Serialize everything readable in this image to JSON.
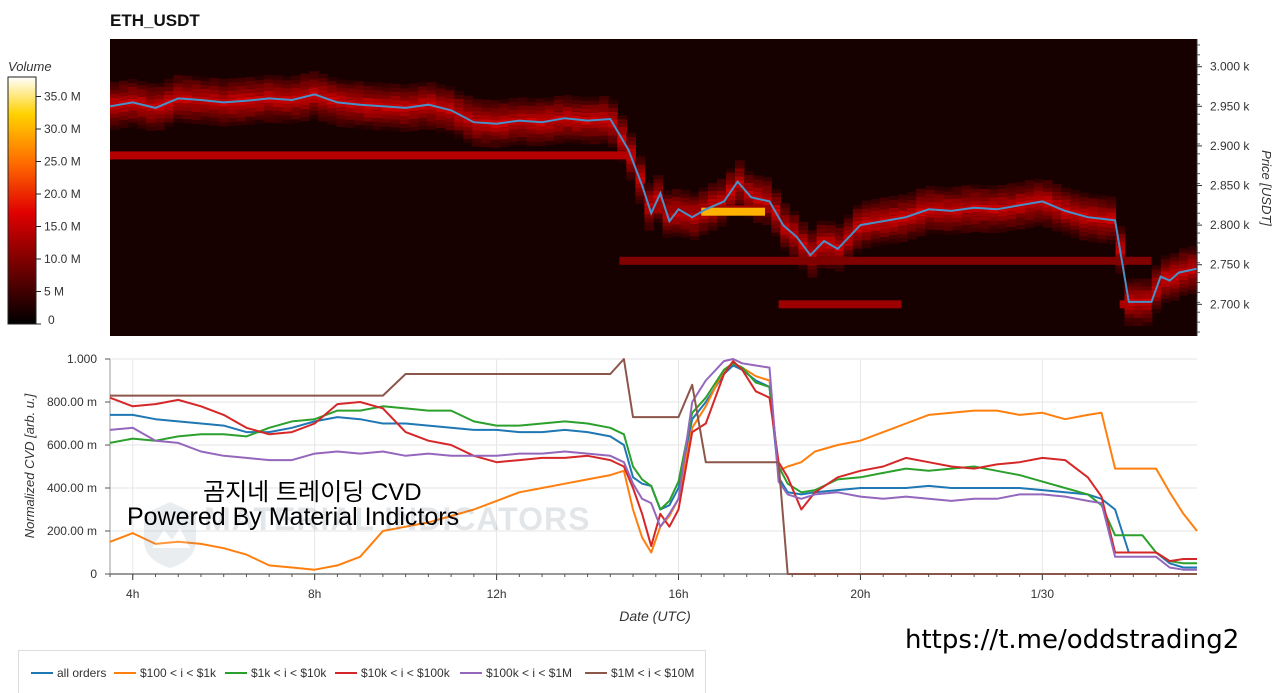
{
  "title": "ETH_USDT",
  "colorbar": {
    "label": "Volume",
    "ticks": [
      "35.0 M",
      "30.0 M",
      "25.0 M",
      "20.0 M",
      "15.0 M",
      "10.0 M",
      "5 M",
      "0"
    ]
  },
  "overlay": {
    "line1": "곰지네 트레이딩 CVD",
    "line2": "Powered By Material Indictors",
    "url": "https://t.me/oddstrading2",
    "watermark": "MATERIAL INDICATORS"
  },
  "chart_data": [
    {
      "type": "heatmap",
      "title": "ETH_USDT",
      "ylabel": "Price [USDT]",
      "yticks": [
        "3.000 k",
        "2.950 k",
        "2.900 k",
        "2.850 k",
        "2.800 k",
        "2.750 k",
        "2.700 k"
      ],
      "ylim": [
        2660,
        3035
      ],
      "xlim_hours": [
        3.5,
        27.4
      ],
      "colorbar_range_millions": [
        0,
        38
      ],
      "heat_bands": [
        {
          "price": 2888,
          "from": 3.5,
          "to": 14.9,
          "volume_m": 14
        },
        {
          "price": 2820,
          "from": 15.4,
          "to": 18.0,
          "volume_m": 12
        },
        {
          "price": 2817,
          "from": 16.5,
          "to": 17.9,
          "volume_m": 30
        },
        {
          "price": 2755,
          "from": 14.7,
          "to": 26.4,
          "volume_m": 10
        },
        {
          "price": 2700,
          "from": 18.2,
          "to": 20.9,
          "volume_m": 12
        },
        {
          "price": 2700,
          "from": 25.7,
          "to": 25.9,
          "volume_m": 13
        }
      ],
      "price_series": {
        "name": "",
        "x": [
          3.5,
          4.0,
          4.5,
          5.0,
          5.5,
          6.0,
          6.5,
          7.0,
          7.5,
          8.0,
          8.5,
          9.0,
          9.5,
          10.0,
          10.5,
          11.0,
          11.5,
          12.0,
          12.5,
          13.0,
          13.5,
          14.0,
          14.5,
          14.9,
          15.2,
          15.4,
          15.6,
          15.8,
          16.0,
          16.3,
          16.6,
          17.0,
          17.3,
          17.6,
          18.0,
          18.3,
          18.6,
          18.9,
          19.2,
          19.5,
          20.0,
          20.5,
          21.0,
          21.5,
          22.0,
          22.5,
          23.0,
          23.5,
          24.0,
          24.5,
          25.0,
          25.3,
          25.6,
          25.9,
          26.2,
          26.4,
          26.6,
          26.8,
          27.0,
          27.4
        ],
        "y": [
          2950,
          2955,
          2948,
          2960,
          2958,
          2955,
          2957,
          2960,
          2958,
          2965,
          2955,
          2952,
          2950,
          2948,
          2952,
          2945,
          2930,
          2928,
          2932,
          2930,
          2935,
          2932,
          2934,
          2895,
          2850,
          2815,
          2840,
          2805,
          2820,
          2810,
          2820,
          2830,
          2855,
          2835,
          2830,
          2800,
          2785,
          2762,
          2780,
          2770,
          2800,
          2805,
          2810,
          2820,
          2818,
          2822,
          2820,
          2825,
          2830,
          2818,
          2810,
          2808,
          2806,
          2703,
          2703,
          2703,
          2735,
          2730,
          2740,
          2745
        ]
      }
    },
    {
      "type": "line",
      "xlabel": "Date (UTC)",
      "ylabel": "Normalized CVD [arb. u.]",
      "x_ticks": [
        "4h",
        "8h",
        "12h",
        "16h",
        "20h",
        "1/30"
      ],
      "x_tick_hours": [
        4,
        8,
        12,
        16,
        20,
        24
      ],
      "y_ticks": [
        "0",
        "200.00 m",
        "400.00 m",
        "600.00 m",
        "800.00 m",
        "1.000"
      ],
      "y_tick_values": [
        0,
        0.2,
        0.4,
        0.6,
        0.8,
        1.0
      ],
      "ylim": [
        0,
        1.0
      ],
      "xlim_hours": [
        3.5,
        27.4
      ],
      "grid": true,
      "legend_position": "bottom",
      "x": [
        3.5,
        4.0,
        4.5,
        5.0,
        5.5,
        6.0,
        6.5,
        7.0,
        7.5,
        8.0,
        8.5,
        9.0,
        9.5,
        10.0,
        10.5,
        11.0,
        11.5,
        12.0,
        12.5,
        13.0,
        13.5,
        14.0,
        14.5,
        14.8,
        15.0,
        15.2,
        15.4,
        15.6,
        15.8,
        16.0,
        16.3,
        16.6,
        17.0,
        17.2,
        17.4,
        17.7,
        18.0,
        18.2,
        18.4,
        18.7,
        19.0,
        19.5,
        20.0,
        20.5,
        21.0,
        21.5,
        22.0,
        22.5,
        23.0,
        23.5,
        24.0,
        24.5,
        25.0,
        25.3,
        25.6,
        25.9,
        26.2,
        26.5,
        26.8,
        27.1,
        27.4
      ],
      "series": [
        {
          "name": "all orders",
          "color": "#1f77b4",
          "values": [
            0.74,
            0.74,
            0.72,
            0.71,
            0.7,
            0.69,
            0.66,
            0.66,
            0.68,
            0.71,
            0.73,
            0.72,
            0.7,
            0.7,
            0.69,
            0.68,
            0.67,
            0.67,
            0.66,
            0.66,
            0.67,
            0.66,
            0.64,
            0.6,
            0.45,
            0.42,
            0.41,
            0.3,
            0.32,
            0.4,
            0.72,
            0.8,
            0.93,
            0.97,
            0.95,
            0.9,
            0.87,
            0.45,
            0.38,
            0.37,
            0.38,
            0.39,
            0.4,
            0.4,
            0.4,
            0.41,
            0.4,
            0.4,
            0.4,
            0.4,
            0.39,
            0.38,
            0.37,
            0.35,
            0.3,
            0.1,
            0.1,
            0.1,
            0.05,
            0.03,
            0.03
          ]
        },
        {
          "name": "$100 < i < $1k",
          "color": "#ff7f0e",
          "values": [
            0.15,
            0.19,
            0.14,
            0.15,
            0.14,
            0.12,
            0.09,
            0.04,
            0.03,
            0.02,
            0.04,
            0.08,
            0.2,
            0.22,
            0.24,
            0.27,
            0.3,
            0.34,
            0.38,
            0.4,
            0.42,
            0.44,
            0.46,
            0.48,
            0.3,
            0.17,
            0.1,
            0.22,
            0.27,
            0.35,
            0.68,
            0.78,
            0.95,
            0.98,
            0.96,
            0.92,
            0.9,
            0.48,
            0.5,
            0.52,
            0.57,
            0.6,
            0.62,
            0.66,
            0.7,
            0.74,
            0.75,
            0.76,
            0.76,
            0.74,
            0.75,
            0.72,
            0.74,
            0.75,
            0.49,
            0.49,
            0.49,
            0.49,
            0.38,
            0.28,
            0.2
          ]
        },
        {
          "name": "$1k < i < $10k",
          "color": "#2ca02c",
          "values": [
            0.61,
            0.63,
            0.62,
            0.64,
            0.65,
            0.65,
            0.64,
            0.68,
            0.71,
            0.72,
            0.76,
            0.76,
            0.78,
            0.77,
            0.76,
            0.76,
            0.71,
            0.69,
            0.69,
            0.7,
            0.71,
            0.7,
            0.68,
            0.65,
            0.5,
            0.44,
            0.41,
            0.3,
            0.34,
            0.43,
            0.75,
            0.82,
            0.95,
            0.98,
            0.96,
            0.89,
            0.87,
            0.5,
            0.42,
            0.38,
            0.39,
            0.44,
            0.45,
            0.47,
            0.49,
            0.48,
            0.49,
            0.5,
            0.48,
            0.46,
            0.43,
            0.4,
            0.37,
            0.32,
            0.18,
            0.18,
            0.18,
            0.1,
            0.06,
            0.05,
            0.05
          ]
        },
        {
          "name": "$10k < i < $100k",
          "color": "#d62728",
          "values": [
            0.82,
            0.78,
            0.79,
            0.81,
            0.78,
            0.74,
            0.68,
            0.65,
            0.66,
            0.7,
            0.79,
            0.8,
            0.77,
            0.66,
            0.62,
            0.6,
            0.55,
            0.52,
            0.53,
            0.54,
            0.54,
            0.55,
            0.53,
            0.5,
            0.4,
            0.28,
            0.13,
            0.28,
            0.22,
            0.3,
            0.66,
            0.7,
            0.93,
            0.99,
            0.95,
            0.85,
            0.82,
            0.52,
            0.45,
            0.3,
            0.38,
            0.45,
            0.48,
            0.5,
            0.54,
            0.52,
            0.5,
            0.49,
            0.51,
            0.52,
            0.54,
            0.53,
            0.45,
            0.36,
            0.1,
            0.1,
            0.1,
            0.1,
            0.06,
            0.07,
            0.07
          ]
        },
        {
          "name": "$100k < i < $1M",
          "color": "#9467bd",
          "values": [
            0.67,
            0.68,
            0.62,
            0.61,
            0.57,
            0.55,
            0.54,
            0.53,
            0.53,
            0.56,
            0.57,
            0.56,
            0.57,
            0.55,
            0.56,
            0.55,
            0.55,
            0.55,
            0.56,
            0.56,
            0.57,
            0.56,
            0.55,
            0.52,
            0.42,
            0.35,
            0.33,
            0.22,
            0.28,
            0.35,
            0.8,
            0.9,
            0.99,
            1.0,
            0.98,
            0.97,
            0.96,
            0.43,
            0.37,
            0.35,
            0.37,
            0.38,
            0.36,
            0.35,
            0.36,
            0.35,
            0.34,
            0.35,
            0.35,
            0.37,
            0.37,
            0.36,
            0.34,
            0.33,
            0.08,
            0.08,
            0.08,
            0.08,
            0.03,
            0.02,
            0.02
          ]
        },
        {
          "name": "$1M < i < $10M",
          "color": "#8c564b",
          "values": [
            0.83,
            0.83,
            0.83,
            0.83,
            0.83,
            0.83,
            0.83,
            0.83,
            0.83,
            0.83,
            0.83,
            0.83,
            0.83,
            0.93,
            0.93,
            0.93,
            0.93,
            0.93,
            0.93,
            0.93,
            0.93,
            0.93,
            0.93,
            1.0,
            0.73,
            0.73,
            0.73,
            0.73,
            0.73,
            0.73,
            0.88,
            0.52,
            0.52,
            0.52,
            0.52,
            0.52,
            0.52,
            0.52,
            0.0,
            0.0,
            0.0,
            0.0,
            0.0,
            0.0,
            0.0,
            0.0,
            0.0,
            0.0,
            0.0,
            0.0,
            0.0,
            0.0,
            0.0,
            0.0,
            0.0,
            0.0,
            0.0,
            0.0,
            0.0,
            0.0,
            0.0
          ]
        }
      ]
    }
  ]
}
